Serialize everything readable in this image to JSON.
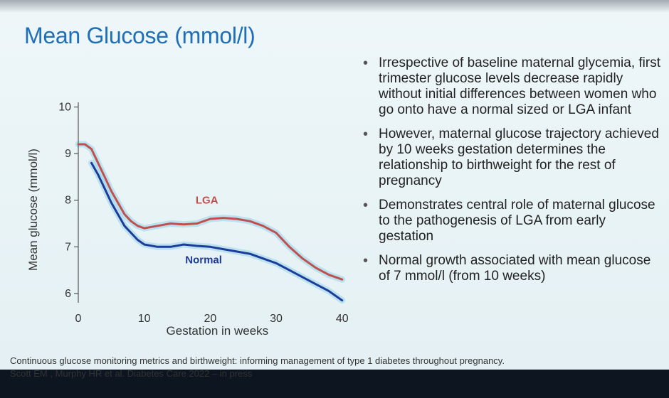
{
  "slide": {
    "title": "Mean Glucose (mmol/l)",
    "bullets": [
      "Irrespective of baseline maternal glycemia, first trimester glucose levels decrease rapidly without initial differences between women who go onto have a normal sized or LGA infant",
      "However, maternal glucose trajectory achieved by 10 weeks gestation determines the relationship to birthweight for the rest of pregnancy",
      "Demonstrates central role of maternal glucose to the pathogenesis of LGA from early gestation",
      "Normal growth associated with mean glucose of 7 mmol/l  (from 10 weeks)"
    ],
    "caption": {
      "line1": "Continuous glucose monitoring metrics and birthweight: informing management of type 1 diabetes throughout pregnancy.",
      "line2": "Scott EM , Murphy HR et al. Diabetes Care 2022 – in press"
    }
  },
  "chart_data": {
    "type": "line",
    "xlabel": "Gestation in weeks",
    "ylabel": "Mean glucose (mmol/l)",
    "xlim": [
      0,
      41
    ],
    "ylim": [
      5.8,
      10.1
    ],
    "x_ticks": [
      0,
      10,
      20,
      30,
      40
    ],
    "y_ticks": [
      6,
      7,
      8,
      9,
      10
    ],
    "grid": false,
    "series": [
      {
        "name": "LGA",
        "color": "#c0504d",
        "x": [
          0,
          1,
          2,
          3,
          4,
          5,
          6,
          7,
          8,
          9,
          10,
          12,
          14,
          16,
          18,
          20,
          22,
          24,
          26,
          28,
          30,
          32,
          34,
          36,
          38,
          40
        ],
        "y": [
          9.2,
          9.2,
          9.1,
          8.8,
          8.5,
          8.2,
          7.95,
          7.7,
          7.55,
          7.45,
          7.4,
          7.45,
          7.5,
          7.48,
          7.5,
          7.6,
          7.62,
          7.6,
          7.55,
          7.45,
          7.3,
          7.0,
          6.75,
          6.55,
          6.4,
          6.3
        ]
      },
      {
        "name": "Normal",
        "color": "#1f3b99",
        "x": [
          2,
          3,
          4,
          5,
          6,
          7,
          8,
          9,
          10,
          12,
          14,
          16,
          18,
          20,
          22,
          24,
          26,
          28,
          30,
          32,
          34,
          36,
          38,
          40
        ],
        "y": [
          8.8,
          8.55,
          8.25,
          7.95,
          7.7,
          7.45,
          7.3,
          7.15,
          7.05,
          7.0,
          7.0,
          7.05,
          7.02,
          7.0,
          6.95,
          6.9,
          6.85,
          6.75,
          6.65,
          6.5,
          6.35,
          6.2,
          6.05,
          5.85
        ]
      }
    ]
  }
}
